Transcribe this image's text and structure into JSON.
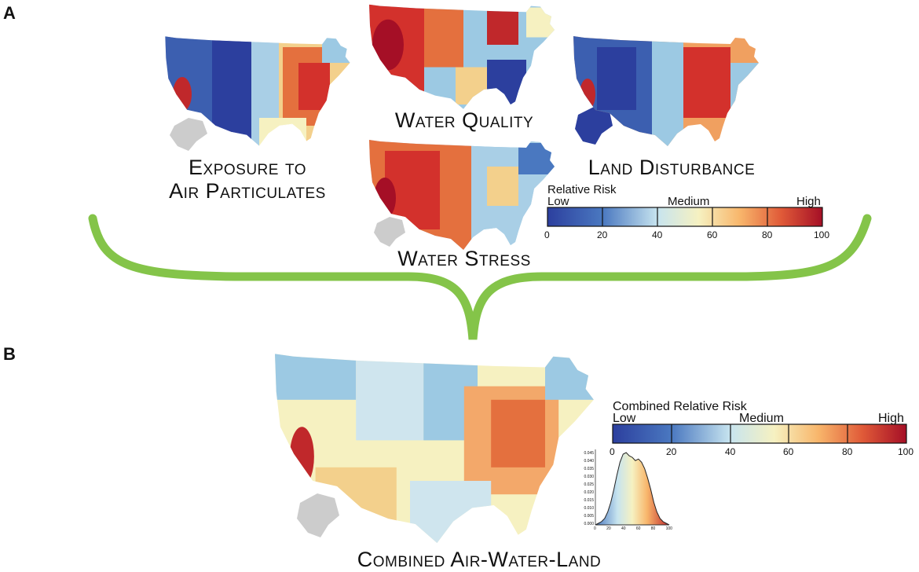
{
  "panels": {
    "a": {
      "letter": "A"
    },
    "b": {
      "letter": "B"
    }
  },
  "maps": {
    "air": {
      "title_line1": "Exposure to",
      "title_line2": "Air Particulates",
      "dominant": "mixed-blue-west"
    },
    "water_quality": {
      "title": "Water Quality",
      "dominant": "red-west"
    },
    "land": {
      "title": "Land Disturbance",
      "dominant": "mixed"
    },
    "water_stress": {
      "title": "Water Stress",
      "dominant": "red-west"
    },
    "combined": {
      "title": "Combined Air-Water-Land",
      "dominant": "yellow-orange"
    }
  },
  "legend_a": {
    "title": "Relative Risk",
    "low": "Low",
    "medium": "Medium",
    "high": "High",
    "ticks": [
      "0",
      "20",
      "40",
      "60",
      "80",
      "100"
    ]
  },
  "legend_b": {
    "title": "Combined Relative Risk",
    "low": "Low",
    "medium": "Medium",
    "high": "High",
    "ticks": [
      "0",
      "20",
      "40",
      "60",
      "80",
      "100"
    ]
  },
  "histogram": {
    "y_ticks": [
      "0.045",
      "0.040",
      "0.035",
      "0.030",
      "0.025",
      "0.020",
      "0.015",
      "0.010",
      "0.005",
      "0.000"
    ],
    "x_ticks": [
      "0",
      "20",
      "40",
      "60",
      "80",
      "100"
    ],
    "density": [
      0.0,
      0.001,
      0.002,
      0.004,
      0.008,
      0.014,
      0.022,
      0.031,
      0.039,
      0.044,
      0.045,
      0.043,
      0.042,
      0.04,
      0.041,
      0.039,
      0.035,
      0.029,
      0.022,
      0.014,
      0.008,
      0.004,
      0.002,
      0.001,
      0.0
    ]
  },
  "colors": {
    "scale": [
      "#2c3f9e",
      "#4a78c0",
      "#9cc9e3",
      "#f4f1c6",
      "#f8c679",
      "#f08a4b",
      "#d3312c",
      "#a50f26"
    ],
    "bracket": "#84c449",
    "alaska_gray": "#cccccc"
  }
}
